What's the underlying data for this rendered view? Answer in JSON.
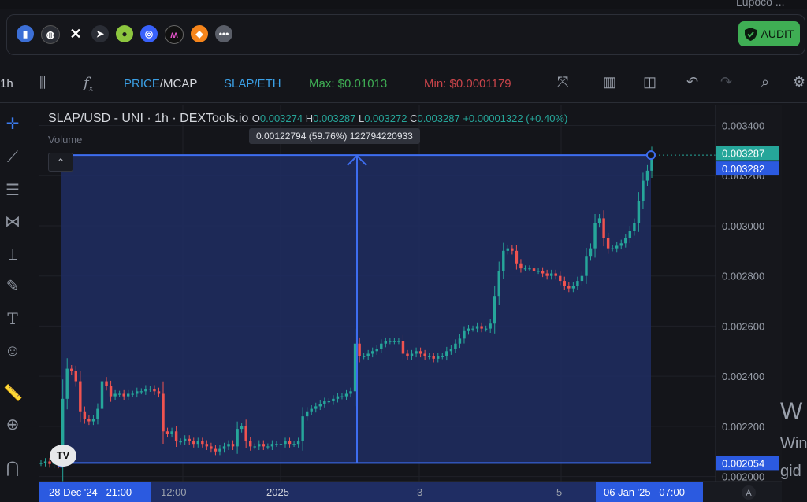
{
  "top_fragment": "Lupoco ...",
  "social": {
    "icons": [
      "chart-icon",
      "globe-icon",
      "x-icon",
      "telegram-icon",
      "coingecko-icon",
      "coinmarketcap-icon",
      "dextools-icon",
      "metamask-icon",
      "more-icon"
    ],
    "audit_label": "AUDIT"
  },
  "toolbar": {
    "interval": "1h",
    "price_label": "PRICE",
    "mcap_label": "/MCAP",
    "pair_toggle": "SLAP/ETH",
    "max": "Max: $0.01013",
    "min": "Min: $0.0001179"
  },
  "chart_header": {
    "title": "SLAP/USD - UNI · 1h · DEXTools.io",
    "o_label": "O",
    "o": "0.003274",
    "h_label": "H",
    "h": "0.003287",
    "l_label": "L",
    "l": "0.003272",
    "c_label": "C",
    "c": "0.003287",
    "change": "+0.00001322 (+0.40%)",
    "volume_label": "Volume"
  },
  "measure_tooltip": "0.00122794 (59.76%) 122794220933",
  "price_labels": {
    "last": "0.003287",
    "crosshair": "0.003282",
    "range_low": "0.002054"
  },
  "time_labels": {
    "start": "28 Dec '24   21:00",
    "t2": "12:00",
    "t3": "2025",
    "t4": "3",
    "t5": "5",
    "end": "06 Jan '25   07:00"
  },
  "right_fragment": {
    "big": "W",
    "line1": "Win",
    "line2": "gid"
  },
  "auto_label": "A",
  "chart_data": {
    "type": "candlestick",
    "title": "SLAP/USD - UNI · 1h · DEXTools.io",
    "ylim": [
      0.00198,
      0.00348
    ],
    "y_ticks": [
      0.0034,
      0.0032,
      0.003,
      0.0028,
      0.0026,
      0.0024,
      0.0022,
      0.002
    ],
    "y_tick_labels": [
      "0.003400",
      "0.003200",
      "0.003000",
      "0.002800",
      "0.002600",
      "0.002400",
      "0.002200",
      "0.002000"
    ],
    "x_labels": [
      "28 Dec '24   21:00",
      "12:00",
      "2025",
      "3",
      "5",
      "06 Jan '25   07:00"
    ],
    "closes": [
      0.002054,
      0.00206,
      0.00205,
      0.00207,
      0.00205,
      0.00231,
      0.00243,
      0.00242,
      0.00238,
      0.00226,
      0.00223,
      0.00222,
      0.00223,
      0.00227,
      0.00238,
      0.00236,
      0.00232,
      0.00233,
      0.00233,
      0.00232,
      0.00233,
      0.00233,
      0.00234,
      0.00234,
      0.00235,
      0.00235,
      0.00234,
      0.00233,
      0.00218,
      0.00217,
      0.00218,
      0.00214,
      0.00214,
      0.00215,
      0.00214,
      0.00213,
      0.00214,
      0.00213,
      0.00212,
      0.00211,
      0.0021,
      0.00211,
      0.00212,
      0.00213,
      0.00212,
      0.00219,
      0.0022,
      0.00214,
      0.00212,
      0.00212,
      0.00213,
      0.00212,
      0.00212,
      0.00213,
      0.00213,
      0.00213,
      0.00214,
      0.00213,
      0.00213,
      0.00214,
      0.00224,
      0.00226,
      0.00227,
      0.00228,
      0.00229,
      0.0023,
      0.0023,
      0.00231,
      0.00232,
      0.00232,
      0.00233,
      0.00234,
      0.00253,
      0.00248,
      0.00248,
      0.00249,
      0.0025,
      0.00251,
      0.00253,
      0.00254,
      0.00254,
      0.00254,
      0.00254,
      0.00249,
      0.00248,
      0.00249,
      0.0025,
      0.00249,
      0.00248,
      0.00248,
      0.00247,
      0.00248,
      0.00248,
      0.0025,
      0.00251,
      0.00253,
      0.00255,
      0.00258,
      0.00259,
      0.00259,
      0.0026,
      0.00259,
      0.00259,
      0.00261,
      0.00272,
      0.00282,
      0.0029,
      0.00291,
      0.0029,
      0.00285,
      0.00283,
      0.00283,
      0.00283,
      0.00282,
      0.00282,
      0.00281,
      0.0028,
      0.00281,
      0.0028,
      0.00278,
      0.00276,
      0.00275,
      0.00276,
      0.00278,
      0.0028,
      0.00288,
      0.00291,
      0.00301,
      0.00303,
      0.00295,
      0.00291,
      0.00291,
      0.00292,
      0.00293,
      0.00295,
      0.00298,
      0.00301,
      0.0031,
      0.00318,
      0.00322,
      0.003287
    ],
    "measure": {
      "from": 0.002054,
      "to": 0.003282,
      "change": "0.00122794 (59.76%)"
    },
    "up_color": "#26a69a",
    "down_color": "#ef5350"
  }
}
